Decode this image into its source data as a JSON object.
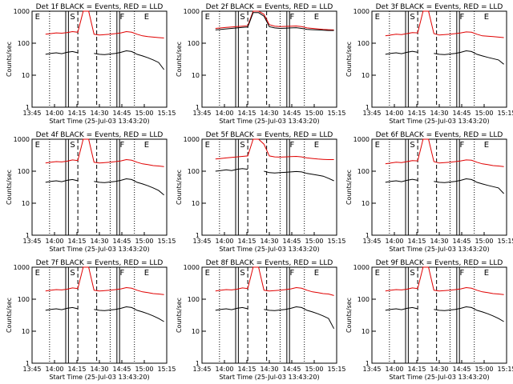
{
  "chart_data": [
    {
      "type": "line",
      "title": "Det 1f BLACK = Events, RED = LLD",
      "xlabel": "Start Time (25-Jul-03 13:43:20)",
      "ylabel": "Counts/sec",
      "x_ticks": [
        "13:45",
        "14:00",
        "14:15",
        "14:30",
        "14:45",
        "15:00",
        "15:15"
      ],
      "y_ticks": [
        "1",
        "10",
        "100",
        "1000"
      ],
      "y_scale": "log",
      "ylim": [
        1,
        1000
      ],
      "markers": [
        "E",
        "S",
        "F",
        "E"
      ],
      "series": [
        {
          "color": "red",
          "values": [
            190,
            200,
            210,
            205,
            215,
            230,
            220,
            1000,
            1000,
            190,
            180,
            185,
            190,
            200,
            210,
            230,
            220,
            190,
            170,
            160,
            155,
            150,
            145
          ]
        },
        {
          "color": "black",
          "values": [
            45,
            48,
            50,
            47,
            52,
            55,
            50,
            null,
            null,
            48,
            45,
            44,
            46,
            48,
            52,
            58,
            55,
            45,
            40,
            35,
            30,
            25,
            15
          ]
        }
      ]
    },
    {
      "type": "line",
      "title": "Det 2f BLACK = Events, RED = LLD",
      "xlabel": "Start Time (25-Jul-03 13:43:20)",
      "ylabel": "Counts/sec",
      "x_ticks": [
        "13:45",
        "14:00",
        "14:15",
        "14:30",
        "14:45",
        "15:00",
        "15:15"
      ],
      "y_ticks": [
        "1",
        "10",
        "100",
        "1000"
      ],
      "y_scale": "log",
      "ylim": [
        1,
        1000
      ],
      "markers": [
        "E",
        "S",
        "F",
        "E"
      ],
      "series": [
        {
          "color": "red",
          "values": [
            290,
            300,
            310,
            320,
            330,
            340,
            350,
            1000,
            1000,
            800,
            380,
            340,
            330,
            335,
            340,
            345,
            330,
            300,
            290,
            280,
            270,
            265,
            260
          ]
        },
        {
          "color": "black",
          "values": [
            260,
            270,
            280,
            290,
            300,
            310,
            320,
            900,
            900,
            700,
            330,
            300,
            290,
            295,
            300,
            305,
            290,
            270,
            265,
            260,
            255,
            250,
            250
          ]
        }
      ]
    },
    {
      "type": "line",
      "title": "Det 3f BLACK = Events, RED = LLD",
      "xlabel": "Start Time (25-Jul-03 13:43:20)",
      "ylabel": "Counts/sec",
      "x_ticks": [
        "13:45",
        "14:00",
        "14:15",
        "14:30",
        "14:45",
        "15:00",
        "15:15"
      ],
      "y_ticks": [
        "1",
        "10",
        "100",
        "1000"
      ],
      "y_scale": "log",
      "ylim": [
        1,
        1000
      ],
      "markers": [
        "E",
        "S",
        "F",
        "E"
      ],
      "series": [
        {
          "color": "red",
          "values": [
            170,
            180,
            190,
            185,
            200,
            215,
            210,
            1000,
            1000,
            200,
            180,
            185,
            190,
            200,
            210,
            225,
            220,
            190,
            170,
            165,
            160,
            155,
            150
          ]
        },
        {
          "color": "black",
          "values": [
            45,
            48,
            50,
            47,
            52,
            56,
            52,
            null,
            null,
            48,
            45,
            44,
            46,
            48,
            52,
            58,
            55,
            45,
            40,
            36,
            33,
            30,
            22
          ]
        }
      ]
    },
    {
      "type": "line",
      "title": "Det 4f BLACK = Events, RED = LLD",
      "xlabel": "Start Time (25-Jul-03 13:43:20)",
      "ylabel": "Counts/sec",
      "x_ticks": [
        "13:45",
        "14:00",
        "14:15",
        "14:30",
        "14:45",
        "15:00",
        "15:15"
      ],
      "y_ticks": [
        "1",
        "10",
        "100",
        "1000"
      ],
      "y_scale": "log",
      "ylim": [
        1,
        1000
      ],
      "markers": [
        "E",
        "S",
        "F",
        "E"
      ],
      "series": [
        {
          "color": "red",
          "values": [
            180,
            190,
            200,
            195,
            205,
            225,
            215,
            1000,
            1000,
            190,
            180,
            185,
            190,
            200,
            210,
            230,
            220,
            190,
            170,
            160,
            150,
            145,
            140
          ]
        },
        {
          "color": "black",
          "values": [
            45,
            48,
            50,
            47,
            52,
            55,
            50,
            null,
            null,
            48,
            45,
            44,
            46,
            48,
            52,
            58,
            55,
            45,
            40,
            35,
            30,
            25,
            18
          ]
        }
      ]
    },
    {
      "type": "line",
      "title": "Det 5f BLACK = Events, RED = LLD",
      "xlabel": "Start Time (25-Jul-03 13:43:20)",
      "ylabel": "Counts/sec",
      "x_ticks": [
        "13:45",
        "14:00",
        "14:15",
        "14:30",
        "14:45",
        "15:00",
        "15:15"
      ],
      "y_ticks": [
        "1",
        "10",
        "100",
        "1000"
      ],
      "y_scale": "log",
      "ylim": [
        1,
        1000
      ],
      "markers": [
        "E",
        "S",
        "F",
        "E"
      ],
      "series": [
        {
          "color": "red",
          "values": [
            240,
            250,
            260,
            270,
            280,
            290,
            300,
            1000,
            1000,
            700,
            300,
            280,
            275,
            280,
            285,
            290,
            280,
            260,
            250,
            240,
            235,
            230,
            230
          ]
        },
        {
          "color": "black",
          "values": [
            100,
            105,
            110,
            105,
            115,
            120,
            115,
            null,
            null,
            100,
            90,
            88,
            90,
            92,
            95,
            98,
            95,
            85,
            80,
            75,
            70,
            60,
            50
          ]
        }
      ]
    },
    {
      "type": "line",
      "title": "Det 6f BLACK = Events, RED = LLD",
      "xlabel": "Start Time (25-Jul-03 13:43:20)",
      "ylabel": "Counts/sec",
      "x_ticks": [
        "13:45",
        "14:00",
        "14:15",
        "14:30",
        "14:45",
        "15:00",
        "15:15"
      ],
      "y_ticks": [
        "1",
        "10",
        "100",
        "1000"
      ],
      "y_scale": "log",
      "ylim": [
        1,
        1000
      ],
      "markers": [
        "E",
        "S",
        "F",
        "E"
      ],
      "series": [
        {
          "color": "red",
          "values": [
            170,
            180,
            190,
            185,
            200,
            215,
            210,
            1000,
            1000,
            200,
            180,
            185,
            190,
            200,
            210,
            225,
            220,
            190,
            170,
            160,
            150,
            145,
            140
          ]
        },
        {
          "color": "black",
          "values": [
            45,
            48,
            50,
            47,
            52,
            56,
            52,
            null,
            null,
            48,
            45,
            44,
            46,
            48,
            52,
            58,
            55,
            45,
            40,
            36,
            33,
            30,
            20
          ]
        }
      ]
    },
    {
      "type": "line",
      "title": "Det 7f BLACK = Events, RED = LLD",
      "xlabel": "Start Time (25-Jul-03 13:43:20)",
      "ylabel": "Counts/sec",
      "x_ticks": [
        "13:45",
        "14:00",
        "14:15",
        "14:30",
        "14:45",
        "15:00",
        "15:15"
      ],
      "y_ticks": [
        "1",
        "10",
        "100",
        "1000"
      ],
      "y_scale": "log",
      "ylim": [
        1,
        1000
      ],
      "markers": [
        "E",
        "S",
        "F",
        "E"
      ],
      "series": [
        {
          "color": "red",
          "values": [
            180,
            190,
            200,
            195,
            205,
            225,
            215,
            1000,
            1000,
            190,
            180,
            185,
            190,
            200,
            210,
            230,
            220,
            190,
            170,
            160,
            150,
            145,
            140
          ]
        },
        {
          "color": "black",
          "values": [
            45,
            48,
            50,
            47,
            52,
            55,
            50,
            null,
            null,
            48,
            45,
            44,
            46,
            48,
            52,
            58,
            55,
            45,
            40,
            35,
            30,
            25,
            20
          ]
        }
      ]
    },
    {
      "type": "line",
      "title": "Det 8f BLACK = Events, RED = LLD",
      "xlabel": "Start Time (25-Jul-03 13:43:20)",
      "ylabel": "Counts/sec",
      "x_ticks": [
        "13:45",
        "14:00",
        "14:15",
        "14:30",
        "14:45",
        "15:00",
        "15:15"
      ],
      "y_ticks": [
        "1",
        "10",
        "100",
        "1000"
      ],
      "y_scale": "log",
      "ylim": [
        1,
        1000
      ],
      "markers": [
        "E",
        "S",
        "F",
        "E"
      ],
      "series": [
        {
          "color": "red",
          "values": [
            180,
            190,
            200,
            195,
            205,
            225,
            215,
            1000,
            1000,
            190,
            180,
            185,
            190,
            200,
            210,
            230,
            220,
            190,
            170,
            160,
            150,
            145,
            130
          ]
        },
        {
          "color": "black",
          "values": [
            45,
            48,
            50,
            47,
            52,
            55,
            50,
            null,
            null,
            48,
            45,
            44,
            46,
            48,
            52,
            58,
            55,
            45,
            40,
            35,
            30,
            25,
            12
          ]
        }
      ]
    },
    {
      "type": "line",
      "title": "Det 9f BLACK = Events, RED = LLD",
      "xlabel": "Start Time (25-Jul-03 13:43:20)",
      "ylabel": "Counts/sec",
      "x_ticks": [
        "13:45",
        "14:00",
        "14:15",
        "14:30",
        "14:45",
        "15:00",
        "15:15"
      ],
      "y_ticks": [
        "1",
        "10",
        "100",
        "1000"
      ],
      "y_scale": "log",
      "ylim": [
        1,
        1000
      ],
      "markers": [
        "E",
        "S",
        "F",
        "E"
      ],
      "series": [
        {
          "color": "red",
          "values": [
            180,
            190,
            200,
            195,
            205,
            225,
            215,
            1000,
            1000,
            190,
            180,
            185,
            190,
            200,
            210,
            230,
            220,
            190,
            170,
            160,
            150,
            145,
            140
          ]
        },
        {
          "color": "black",
          "values": [
            45,
            48,
            50,
            47,
            52,
            55,
            50,
            null,
            null,
            48,
            45,
            44,
            46,
            48,
            52,
            58,
            55,
            45,
            40,
            35,
            30,
            25,
            20
          ]
        }
      ]
    }
  ]
}
